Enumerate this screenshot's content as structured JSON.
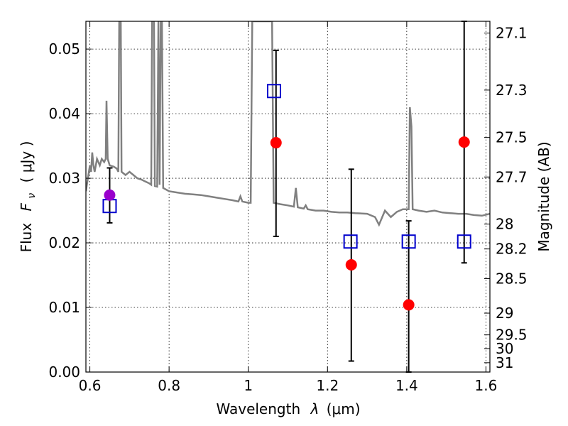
{
  "chart_data": {
    "type": "scatter",
    "xlabel_text": "Wavelength",
    "xlabel_symbol": "λ",
    "xlabel_unit": "(μm)",
    "ylabel_text": "Flux",
    "ylabel_symbol": "F",
    "ylabel_sub": "ν",
    "ylabel_unit": "( μJy )",
    "y2label": "Magnitude (AB)",
    "xlim": [
      0.59,
      1.61
    ],
    "ylim": [
      0.0,
      0.0543
    ],
    "grid": true,
    "x_ticks": [
      {
        "value": 0.6,
        "label": "0.6"
      },
      {
        "value": 0.8,
        "label": "0.8"
      },
      {
        "value": 1.0,
        "label": "1"
      },
      {
        "value": 1.2,
        "label": "1.2"
      },
      {
        "value": 1.4,
        "label": "1.4"
      },
      {
        "value": 1.6,
        "label": "1.6"
      }
    ],
    "y_ticks": [
      {
        "value": 0.0,
        "label": "0.00"
      },
      {
        "value": 0.01,
        "label": "0.01"
      },
      {
        "value": 0.02,
        "label": "0.02"
      },
      {
        "value": 0.03,
        "label": "0.03"
      },
      {
        "value": 0.04,
        "label": "0.04"
      },
      {
        "value": 0.05,
        "label": "0.05"
      }
    ],
    "y2_ticks": [
      {
        "value": 27.1,
        "label": "27.1"
      },
      {
        "value": 27.3,
        "label": "27.3"
      },
      {
        "value": 27.5,
        "label": "27.5"
      },
      {
        "value": 27.7,
        "label": "27.7"
      },
      {
        "value": 28.0,
        "label": "28"
      },
      {
        "value": 28.2,
        "label": "28.2"
      },
      {
        "value": 28.5,
        "label": "28.5"
      },
      {
        "value": 29.0,
        "label": "29"
      },
      {
        "value": 29.5,
        "label": "29.5"
      },
      {
        "value": 30.0,
        "label": "30"
      },
      {
        "value": 31.0,
        "label": "31"
      }
    ],
    "model_spectrum": {
      "color": "#808080",
      "points": [
        [
          0.59,
          0.028
        ],
        [
          0.595,
          0.03
        ],
        [
          0.6,
          0.032
        ],
        [
          0.603,
          0.031
        ],
        [
          0.606,
          0.034
        ],
        [
          0.609,
          0.032
        ],
        [
          0.612,
          0.031
        ],
        [
          0.618,
          0.033
        ],
        [
          0.625,
          0.032
        ],
        [
          0.63,
          0.033
        ],
        [
          0.636,
          0.0325
        ],
        [
          0.64,
          0.033
        ],
        [
          0.642,
          0.042
        ],
        [
          0.645,
          0.033
        ],
        [
          0.65,
          0.032
        ],
        [
          0.66,
          0.0318
        ],
        [
          0.668,
          0.0315
        ],
        [
          0.672,
          0.031
        ],
        [
          0.674,
          0.0543
        ],
        [
          0.678,
          0.0543
        ],
        [
          0.68,
          0.031
        ],
        [
          0.69,
          0.0305
        ],
        [
          0.7,
          0.031
        ],
        [
          0.71,
          0.0305
        ],
        [
          0.72,
          0.03
        ],
        [
          0.73,
          0.0298
        ],
        [
          0.74,
          0.0295
        ],
        [
          0.75,
          0.0292
        ],
        [
          0.755,
          0.029
        ],
        [
          0.757,
          0.0543
        ],
        [
          0.762,
          0.0543
        ],
        [
          0.764,
          0.0288
        ],
        [
          0.77,
          0.0287
        ],
        [
          0.773,
          0.0543
        ],
        [
          0.776,
          0.029
        ],
        [
          0.779,
          0.0543
        ],
        [
          0.782,
          0.0543
        ],
        [
          0.785,
          0.0285
        ],
        [
          0.8,
          0.028
        ],
        [
          0.82,
          0.0278
        ],
        [
          0.84,
          0.0276
        ],
        [
          0.86,
          0.0275
        ],
        [
          0.88,
          0.0274
        ],
        [
          0.9,
          0.0272
        ],
        [
          0.92,
          0.027
        ],
        [
          0.94,
          0.0268
        ],
        [
          0.96,
          0.0266
        ],
        [
          0.975,
          0.0264
        ],
        [
          0.98,
          0.0272
        ],
        [
          0.985,
          0.0264
        ],
        [
          1.0,
          0.0262
        ],
        [
          1.006,
          0.0262
        ],
        [
          1.01,
          0.0543
        ],
        [
          1.06,
          0.0543
        ],
        [
          1.064,
          0.0262
        ],
        [
          1.08,
          0.026
        ],
        [
          1.1,
          0.0258
        ],
        [
          1.115,
          0.0256
        ],
        [
          1.12,
          0.0285
        ],
        [
          1.125,
          0.0255
        ],
        [
          1.14,
          0.0253
        ],
        [
          1.145,
          0.0258
        ],
        [
          1.15,
          0.0252
        ],
        [
          1.17,
          0.025
        ],
        [
          1.19,
          0.025
        ],
        [
          1.21,
          0.0248
        ],
        [
          1.23,
          0.0247
        ],
        [
          1.25,
          0.0247
        ],
        [
          1.27,
          0.0246
        ],
        [
          1.3,
          0.0245
        ],
        [
          1.32,
          0.024
        ],
        [
          1.33,
          0.0228
        ],
        [
          1.345,
          0.025
        ],
        [
          1.36,
          0.024
        ],
        [
          1.375,
          0.0248
        ],
        [
          1.39,
          0.0252
        ],
        [
          1.405,
          0.0252
        ],
        [
          1.408,
          0.041
        ],
        [
          1.412,
          0.038
        ],
        [
          1.415,
          0.0252
        ],
        [
          1.43,
          0.025
        ],
        [
          1.45,
          0.0248
        ],
        [
          1.47,
          0.025
        ],
        [
          1.49,
          0.0247
        ],
        [
          1.51,
          0.0246
        ],
        [
          1.53,
          0.0245
        ],
        [
          1.55,
          0.0245
        ],
        [
          1.57,
          0.0243
        ],
        [
          1.59,
          0.0242
        ],
        [
          1.61,
          0.0245
        ]
      ]
    },
    "model_photometry": {
      "marker": "open-square",
      "color": "#0000cc",
      "points": [
        {
          "x": 0.65,
          "y": 0.0257
        },
        {
          "x": 1.065,
          "y": 0.0435
        },
        {
          "x": 1.258,
          "y": 0.0202
        },
        {
          "x": 1.405,
          "y": 0.0202
        },
        {
          "x": 1.545,
          "y": 0.0202
        }
      ]
    },
    "observed_photometry": [
      {
        "x": 0.65,
        "y": 0.0274,
        "yerr_low": 0.0231,
        "yerr_high": 0.0316,
        "color": "#9900cc"
      },
      {
        "x": 1.07,
        "y": 0.0355,
        "yerr_low": 0.021,
        "yerr_high": 0.0498,
        "color": "#ff0000"
      },
      {
        "x": 1.26,
        "y": 0.0166,
        "yerr_low": 0.0017,
        "yerr_high": 0.0314,
        "color": "#ff0000"
      },
      {
        "x": 1.405,
        "y": 0.0104,
        "yerr_low": 0.0,
        "yerr_high": 0.0234,
        "color": "#ff0000"
      },
      {
        "x": 1.545,
        "y": 0.0356,
        "yerr_low": 0.0169,
        "yerr_high": 0.0543,
        "color": "#ff0000"
      }
    ]
  }
}
